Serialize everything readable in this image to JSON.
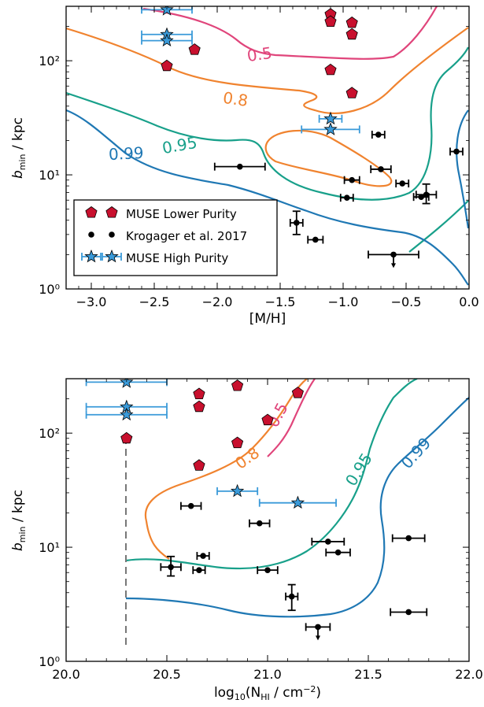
{
  "colors": {
    "purity_0.5": "#e0457b",
    "purity_0.8": "#f0832f",
    "purity_0.95": "#18a08a",
    "purity_0.99": "#1f78b4",
    "muse_lower": "#c8102e",
    "muse_high": "#3a9ad9",
    "krogager": "#000000",
    "dashed": "#777777"
  },
  "chart_data": [
    {
      "type": "scatter",
      "xlabel": "[M/H]",
      "ylabel": "b_min / kpc",
      "xlim": [
        -3.2,
        0.0
      ],
      "ylim": [
        1,
        300
      ],
      "yscale": "log",
      "x_ticks": [
        "−3.0",
        "−2.5",
        "−2.0",
        "−1.5",
        "−1.0",
        "−0.5",
        "0.0"
      ],
      "y_ticks": [
        "10⁰",
        "10¹",
        "10²"
      ],
      "legend": {
        "position": "lower-left",
        "entries": [
          "MUSE Lower Purity",
          "Krogager et al. 2017",
          "MUSE High Purity"
        ]
      },
      "contour_labels": [
        "0.5",
        "0.8",
        "0.95",
        "0.99"
      ],
      "series": [
        {
          "name": "MUSE Lower Purity",
          "marker": "pentagon",
          "points": [
            {
              "x": -2.4,
              "y": 90
            },
            {
              "x": -2.18,
              "y": 125
            },
            {
              "x": -1.1,
              "y": 255
            },
            {
              "x": -1.1,
              "y": 220
            },
            {
              "x": -0.93,
              "y": 215
            },
            {
              "x": -0.93,
              "y": 170
            },
            {
              "x": -1.1,
              "y": 83
            },
            {
              "x": -0.93,
              "y": 52
            }
          ]
        },
        {
          "name": "Krogager et al. 2017",
          "marker": "circle",
          "points": [
            {
              "x": -1.82,
              "y": 11.8,
              "xerr": 0.2
            },
            {
              "x": -1.37,
              "y": 3.8,
              "xerr": 0.05,
              "yerr_up": 1.0,
              "yerr_down": 0.8
            },
            {
              "x": -1.22,
              "y": 2.7,
              "xerr": 0.06
            },
            {
              "x": -0.72,
              "y": 22.5,
              "xerr": 0.05
            },
            {
              "x": -0.1,
              "y": 16,
              "xerr": 0.05
            },
            {
              "x": -0.7,
              "y": 11.2,
              "xerr": 0.08
            },
            {
              "x": -0.93,
              "y": 9,
              "xerr": 0.06
            },
            {
              "x": -0.53,
              "y": 8.4,
              "xerr": 0.05
            },
            {
              "x": -0.97,
              "y": 6.3,
              "xerr": 0.05
            },
            {
              "x": -0.38,
              "y": 6.4,
              "xerr": 0.06
            },
            {
              "x": -0.34,
              "y": 6.7,
              "xerr": 0.08,
              "yerr_up": 1.6,
              "yerr_down": 1.1
            },
            {
              "x": -0.6,
              "y": 2.0,
              "xerr": 0.2,
              "upper_limit": true
            }
          ]
        },
        {
          "name": "MUSE High Purity",
          "marker": "star",
          "points": [
            {
              "x": -2.4,
              "y": 280,
              "xerr": 0.2
            },
            {
              "x": -2.4,
              "y": 170,
              "xerr": 0.2
            },
            {
              "x": -2.4,
              "y": 150,
              "xerr": 0.2
            },
            {
              "x": -1.1,
              "y": 31,
              "xerr": 0.09
            },
            {
              "x": -1.1,
              "y": 25,
              "xerr": 0.23
            }
          ]
        }
      ]
    },
    {
      "type": "scatter",
      "xlabel": "log10(N_HI / cm^-2)",
      "ylabel": "b_min / kpc",
      "xlim": [
        20.0,
        22.0
      ],
      "ylim": [
        1,
        300
      ],
      "yscale": "log",
      "x_ticks": [
        "20.0",
        "20.5",
        "21.0",
        "21.5",
        "22.0"
      ],
      "y_ticks": [
        "10⁰",
        "10¹",
        "10²"
      ],
      "contour_labels": [
        "0.5",
        "0.8",
        "0.95",
        "0.99"
      ],
      "series": [
        {
          "name": "MUSE Lower Purity",
          "marker": "pentagon",
          "points": [
            {
              "x": 20.3,
              "y": 90
            },
            {
              "x": 20.66,
              "y": 220
            },
            {
              "x": 20.66,
              "y": 170
            },
            {
              "x": 20.85,
              "y": 260
            },
            {
              "x": 21.0,
              "y": 130
            },
            {
              "x": 21.15,
              "y": 225
            },
            {
              "x": 20.85,
              "y": 82
            },
            {
              "x": 20.66,
              "y": 52
            }
          ]
        },
        {
          "name": "Krogager et al. 2017",
          "marker": "circle",
          "points": [
            {
              "x": 20.62,
              "y": 23,
              "xerr": 0.05
            },
            {
              "x": 20.96,
              "y": 16.2,
              "xerr": 0.05
            },
            {
              "x": 21.3,
              "y": 11.2,
              "xerr": 0.08
            },
            {
              "x": 21.7,
              "y": 12,
              "xerr": 0.08
            },
            {
              "x": 21.35,
              "y": 9,
              "xerr": 0.06
            },
            {
              "x": 20.68,
              "y": 8.4,
              "xerr": 0.03
            },
            {
              "x": 20.52,
              "y": 6.7,
              "xerr": 0.05,
              "yerr_up": 1.6,
              "yerr_down": 1.1
            },
            {
              "x": 20.66,
              "y": 6.3,
              "xerr": 0.03
            },
            {
              "x": 21.0,
              "y": 6.3,
              "xerr": 0.05
            },
            {
              "x": 21.12,
              "y": 3.7,
              "xerr": 0.03,
              "yerr_up": 1.0,
              "yerr_down": 0.9
            },
            {
              "x": 21.25,
              "y": 2.0,
              "xerr": 0.06,
              "upper_limit": true
            },
            {
              "x": 21.7,
              "y": 2.7,
              "xerr": 0.09
            }
          ]
        },
        {
          "name": "MUSE High Purity",
          "marker": "star",
          "points": [
            {
              "x": 20.3,
              "y": 280,
              "xerr": 0.2
            },
            {
              "x": 20.3,
              "y": 170,
              "xerr": 0.2
            },
            {
              "x": 20.3,
              "y": 145,
              "xerr": 0.2
            },
            {
              "x": 20.85,
              "y": 31,
              "xerr": 0.1
            },
            {
              "x": 21.15,
              "y": 24.5,
              "xerr": 0.19
            }
          ]
        }
      ]
    }
  ]
}
